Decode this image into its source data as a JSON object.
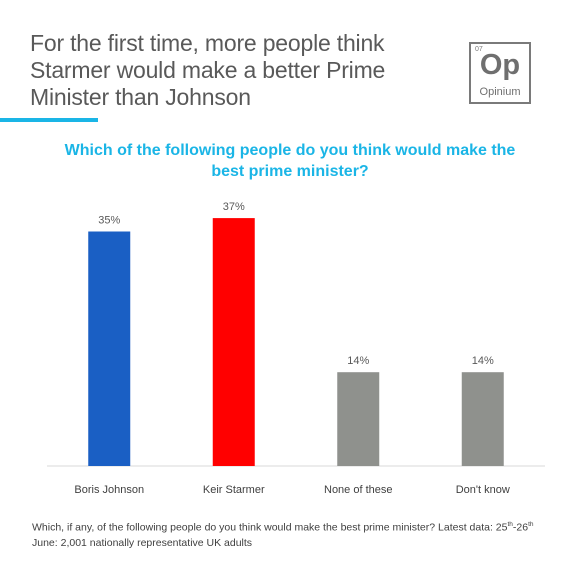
{
  "header": {
    "headline": "For the first time, more people think\nStarmer would make a better Prime\nMinister than Johnson"
  },
  "logo": {
    "number": "07",
    "symbol": "Op",
    "name": "Opinium"
  },
  "colors": {
    "accent": "#1ab5e6",
    "johnson": "#1a5fc4",
    "starmer": "#ff0000",
    "other": "#8f918d"
  },
  "chart_data": {
    "type": "bar",
    "title": "Which of the following people do you think would make the\nbest prime minister?",
    "categories": [
      "Boris Johnson",
      "Keir Starmer",
      "None of these",
      "Don't know"
    ],
    "values": [
      35,
      37,
      14,
      14
    ],
    "value_labels": [
      "35%",
      "37%",
      "14%",
      "14%"
    ],
    "bar_colors": [
      "#1a5fc4",
      "#ff0000",
      "#8f918d",
      "#8f918d"
    ],
    "xlabel": "",
    "ylabel": "",
    "ylim": [
      0,
      40
    ],
    "grid": false,
    "legend": "none"
  },
  "footnote": {
    "part1": "Which, if any, of the following people do you think would make the best prime minister? Latest data: 25",
    "sup1": "th",
    "part2": "-26",
    "sup2": "th",
    "part3": " June: 2,001 nationally representative UK adults"
  }
}
